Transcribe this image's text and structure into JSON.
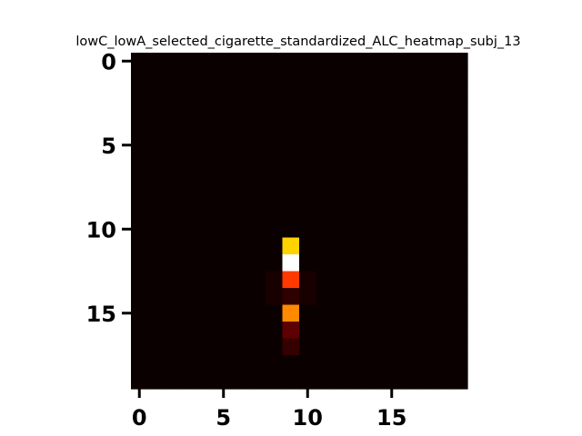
{
  "chart_data": {
    "type": "heatmap",
    "title": "lowC_lowA_selected_cigarette_standardized_ALC_heatmap_subj_13",
    "xlabel": "",
    "ylabel": "",
    "colormap": "hot",
    "shape": [
      20,
      20
    ],
    "xlim": [
      -0.5,
      19.5
    ],
    "ylim": [
      19.5,
      -0.5
    ],
    "xticks": [
      0,
      5,
      10,
      15
    ],
    "yticks": [
      0,
      5,
      10,
      15
    ],
    "cells": [
      {
        "row": 11,
        "col": 9,
        "value": 0.68
      },
      {
        "row": 12,
        "col": 9,
        "value": 1.0
      },
      {
        "row": 13,
        "col": 9,
        "value": 0.45
      },
      {
        "row": 14,
        "col": 9,
        "value": 0.05
      },
      {
        "row": 15,
        "col": 9,
        "value": 0.57
      },
      {
        "row": 16,
        "col": 9,
        "value": 0.12
      },
      {
        "row": 17,
        "col": 9,
        "value": 0.06
      },
      {
        "row": 13,
        "col": 8,
        "value": 0.02
      },
      {
        "row": 14,
        "col": 8,
        "value": 0.02
      },
      {
        "row": 13,
        "col": 10,
        "value": 0.02
      },
      {
        "row": 14,
        "col": 10,
        "value": 0.02
      }
    ],
    "background_value": 0.0
  }
}
